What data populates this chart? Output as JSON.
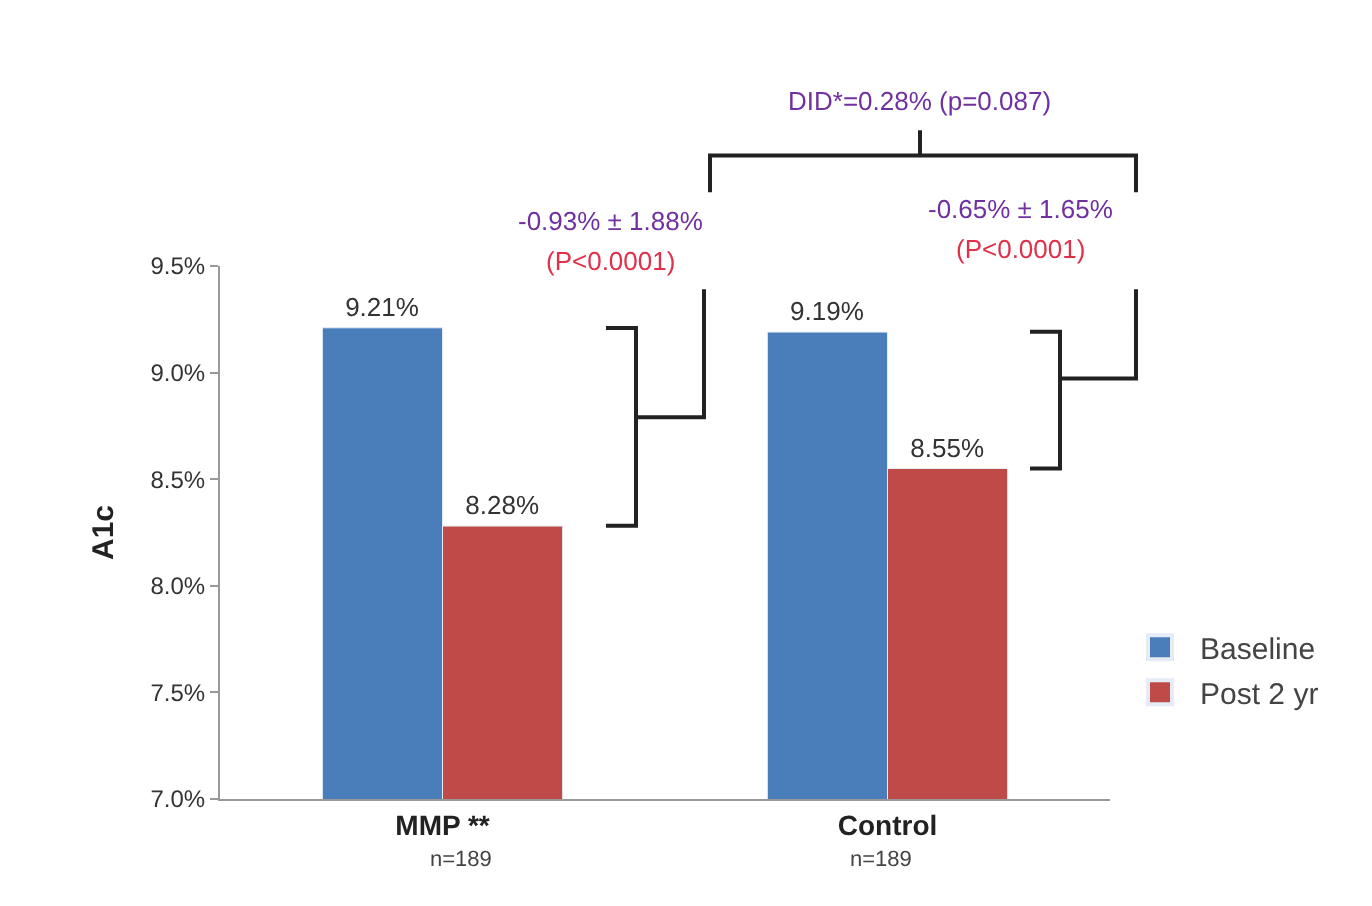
{
  "chart_data": {
    "type": "bar",
    "categories": [
      "MMP **",
      "Control"
    ],
    "ylabel": "A1c",
    "series": [
      {
        "name": "Baseline",
        "color": "#4a7ebb",
        "values": [
          9.21,
          9.19
        ],
        "value_labels": [
          "9.21%",
          "9.19%"
        ]
      },
      {
        "name": "Post 2 yr",
        "color": "#be4b48",
        "values": [
          8.28,
          8.55
        ],
        "value_labels": [
          "8.28%",
          "8.55%"
        ]
      }
    ],
    "ylim": [
      7.0,
      9.5
    ],
    "yticks": [
      {
        "value": 7.0,
        "label": "7.0%"
      },
      {
        "value": 7.5,
        "label": "7.5%"
      },
      {
        "value": 8.0,
        "label": "8.0%"
      },
      {
        "value": 8.5,
        "label": "8.5%"
      },
      {
        "value": 9.0,
        "label": "9.0%"
      },
      {
        "value": 9.5,
        "label": "9.5%"
      }
    ],
    "annotations": [
      "DID*=0.28% (p=0.087)",
      "-0.93% ± 1.88%",
      "(P<0.0001)",
      "-0.65% ± 1.65%",
      "(P<0.0001)",
      "n=189",
      "n=189"
    ],
    "legend": "right"
  }
}
